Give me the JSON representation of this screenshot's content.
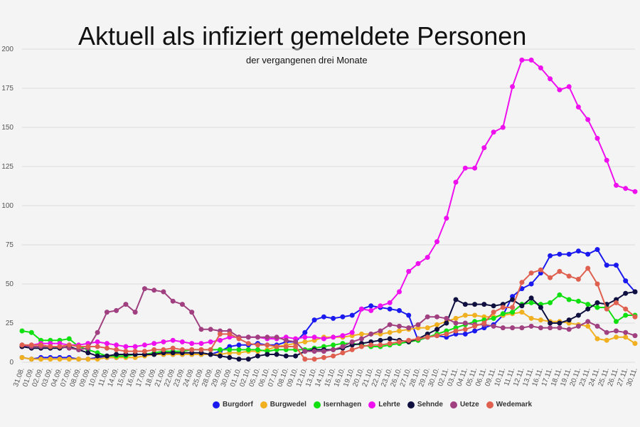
{
  "chart_data": {
    "type": "line",
    "title": "Aktuell als infiziert gemeldete Personen",
    "subtitle": "der vergangenen drei Monate",
    "ylim": [
      0,
      200
    ],
    "yticks": [
      0,
      25,
      50,
      75,
      100,
      125,
      150,
      175,
      200
    ],
    "x": [
      "31.08.",
      "01.09.",
      "02.09.",
      "03.09.",
      "04.09.",
      "07.09.",
      "08.09.",
      "09.09.",
      "10.09.",
      "11.09.",
      "14.09.",
      "15.09.",
      "16.09.",
      "17.09.",
      "18.09.",
      "21.09.",
      "22.09.",
      "23.09.",
      "24.09.",
      "25.09.",
      "28.09.",
      "29.09.",
      "30.09.",
      "01.10.",
      "02.10.",
      "05.10.",
      "06.10.",
      "07.10.",
      "08.10.",
      "09.10.",
      "12.10.",
      "13.10.",
      "14.10.",
      "15.10.",
      "16.10.",
      "19.10.",
      "20.10.",
      "21.10.",
      "22.10.",
      "23.10.",
      "26.10.",
      "27.10.",
      "28.10.",
      "29.10.",
      "30.10.",
      "02.11.",
      "03.11.",
      "04.11.",
      "05.11.",
      "06.11.",
      "09.11.",
      "10.11.",
      "11.11.",
      "12.11.",
      "13.11.",
      "16.11.",
      "17.11.",
      "18.11.",
      "19.11.",
      "20.11.",
      "23.11.",
      "24.11.",
      "25.11.",
      "26.11.",
      "27.11.",
      "30.11."
    ],
    "grid": true,
    "legend_position": "bottom",
    "series": [
      {
        "name": "Burgdorf",
        "color": "#1a1af0",
        "values": [
          3,
          2,
          3,
          3,
          3,
          3,
          2,
          2,
          3,
          3,
          3,
          4,
          5,
          5,
          5,
          5,
          5,
          5,
          5,
          5,
          5,
          7,
          10,
          11,
          11,
          12,
          11,
          11,
          13,
          13,
          19,
          27,
          29,
          28,
          29,
          30,
          34,
          36,
          35,
          34,
          33,
          30,
          14,
          16,
          17,
          16,
          18,
          18,
          20,
          22,
          24,
          30,
          42,
          47,
          50,
          57,
          68,
          69,
          69,
          71,
          69,
          72,
          62,
          62,
          52,
          45
        ]
      },
      {
        "name": "Burgwedel",
        "color": "#f0b020",
        "values": [
          3,
          2,
          2,
          2,
          2,
          2,
          2,
          2,
          2,
          3,
          3,
          3,
          3,
          4,
          5,
          5,
          5,
          5,
          5,
          5,
          5,
          5,
          6,
          6,
          7,
          7,
          8,
          10,
          11,
          12,
          13,
          14,
          16,
          16,
          16,
          17,
          18,
          18,
          18,
          19,
          20,
          21,
          22,
          22,
          24,
          26,
          28,
          30,
          30,
          29,
          29,
          30,
          31,
          32,
          28,
          27,
          26,
          26,
          25,
          24,
          23,
          15,
          14,
          16,
          16,
          12
        ]
      },
      {
        "name": "Isernhagen",
        "color": "#10e010",
        "values": [
          20,
          19,
          14,
          14,
          14,
          15,
          10,
          8,
          6,
          4,
          4,
          4,
          5,
          5,
          6,
          7,
          7,
          7,
          8,
          8,
          8,
          8,
          8,
          8,
          8,
          8,
          7,
          8,
          8,
          8,
          8,
          9,
          10,
          11,
          12,
          12,
          11,
          10,
          10,
          11,
          12,
          13,
          14,
          16,
          18,
          20,
          22,
          24,
          26,
          27,
          28,
          31,
          32,
          37,
          38,
          37,
          38,
          43,
          40,
          39,
          37,
          35,
          35,
          26,
          30,
          30
        ]
      },
      {
        "name": "Lehrte",
        "color": "#ee10ee",
        "values": [
          10,
          11,
          12,
          12,
          12,
          11,
          11,
          12,
          13,
          12,
          11,
          10,
          10,
          11,
          12,
          13,
          14,
          13,
          12,
          12,
          13,
          14,
          16,
          16,
          16,
          16,
          15,
          15,
          16,
          15,
          16,
          16,
          15,
          16,
          17,
          19,
          34,
          33,
          36,
          38,
          45,
          58,
          63,
          67,
          77,
          92,
          115,
          124,
          124,
          137,
          147,
          150,
          176,
          193,
          193,
          188,
          181,
          174,
          176,
          163,
          155,
          143,
          129,
          113,
          111,
          109
        ]
      },
      {
        "name": "Sehnde",
        "color": "#101040",
        "values": [
          10,
          9,
          9,
          9,
          9,
          10,
          8,
          6,
          4,
          4,
          5,
          5,
          5,
          5,
          5,
          6,
          6,
          6,
          6,
          6,
          5,
          4,
          3,
          2,
          2,
          4,
          5,
          5,
          4,
          4,
          7,
          8,
          8,
          8,
          9,
          11,
          12,
          13,
          14,
          15,
          14,
          13,
          15,
          18,
          21,
          25,
          40,
          37,
          37,
          37,
          36,
          37,
          40,
          36,
          41,
          35,
          25,
          25,
          27,
          30,
          34,
          38,
          37,
          40,
          44,
          45
        ]
      },
      {
        "name": "Uetze",
        "color": "#a04080",
        "values": [
          11,
          10,
          10,
          10,
          10,
          9,
          8,
          9,
          19,
          32,
          33,
          37,
          32,
          47,
          46,
          45,
          39,
          37,
          32,
          21,
          21,
          20,
          20,
          16,
          16,
          16,
          16,
          16,
          14,
          13,
          7,
          7,
          7,
          8,
          10,
          13,
          15,
          18,
          20,
          24,
          23,
          22,
          24,
          29,
          29,
          28,
          25,
          25,
          24,
          24,
          23,
          22,
          22,
          22,
          23,
          22,
          22,
          22,
          21,
          23,
          26,
          23,
          19,
          20,
          19,
          17
        ]
      },
      {
        "name": "Wedemark",
        "color": "#e06050",
        "values": [
          11,
          11,
          11,
          10,
          10,
          11,
          10,
          10,
          10,
          9,
          8,
          7,
          7,
          7,
          8,
          8,
          9,
          8,
          8,
          8,
          8,
          18,
          18,
          15,
          12,
          11,
          11,
          10,
          10,
          10,
          2,
          2,
          3,
          4,
          6,
          8,
          10,
          11,
          11,
          12,
          13,
          14,
          15,
          16,
          17,
          18,
          20,
          21,
          23,
          25,
          32,
          35,
          35,
          51,
          57,
          59,
          54,
          58,
          55,
          53,
          60,
          50,
          34,
          38,
          34,
          29
        ]
      }
    ]
  }
}
